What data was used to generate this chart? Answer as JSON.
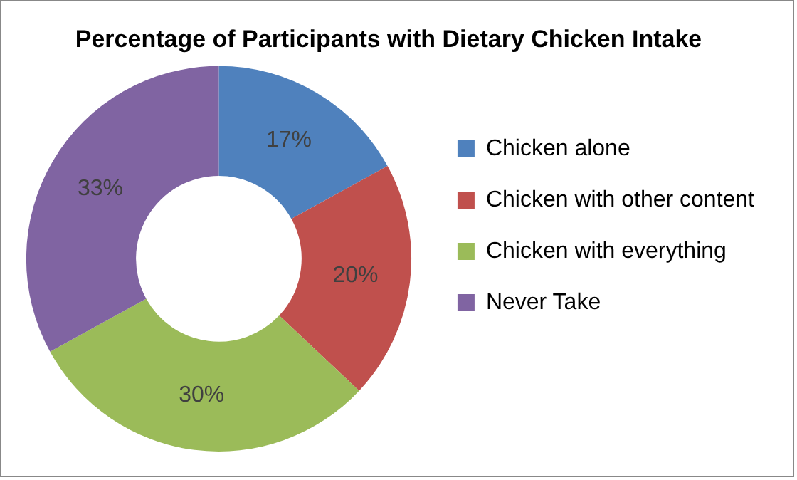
{
  "chart_data": {
    "type": "donut",
    "title": "Percentage of Participants with Dietary Chicken Intake",
    "categories": [
      "Chicken alone",
      "Chicken with other content",
      "Chicken with everything",
      "Never Take"
    ],
    "values": [
      17,
      20,
      30,
      33
    ],
    "value_labels": [
      "17%",
      "20%",
      "30%",
      "33%"
    ],
    "colors": [
      "#4f81bd",
      "#c0504d",
      "#9bbb59",
      "#8064a2"
    ],
    "legend": "right"
  }
}
